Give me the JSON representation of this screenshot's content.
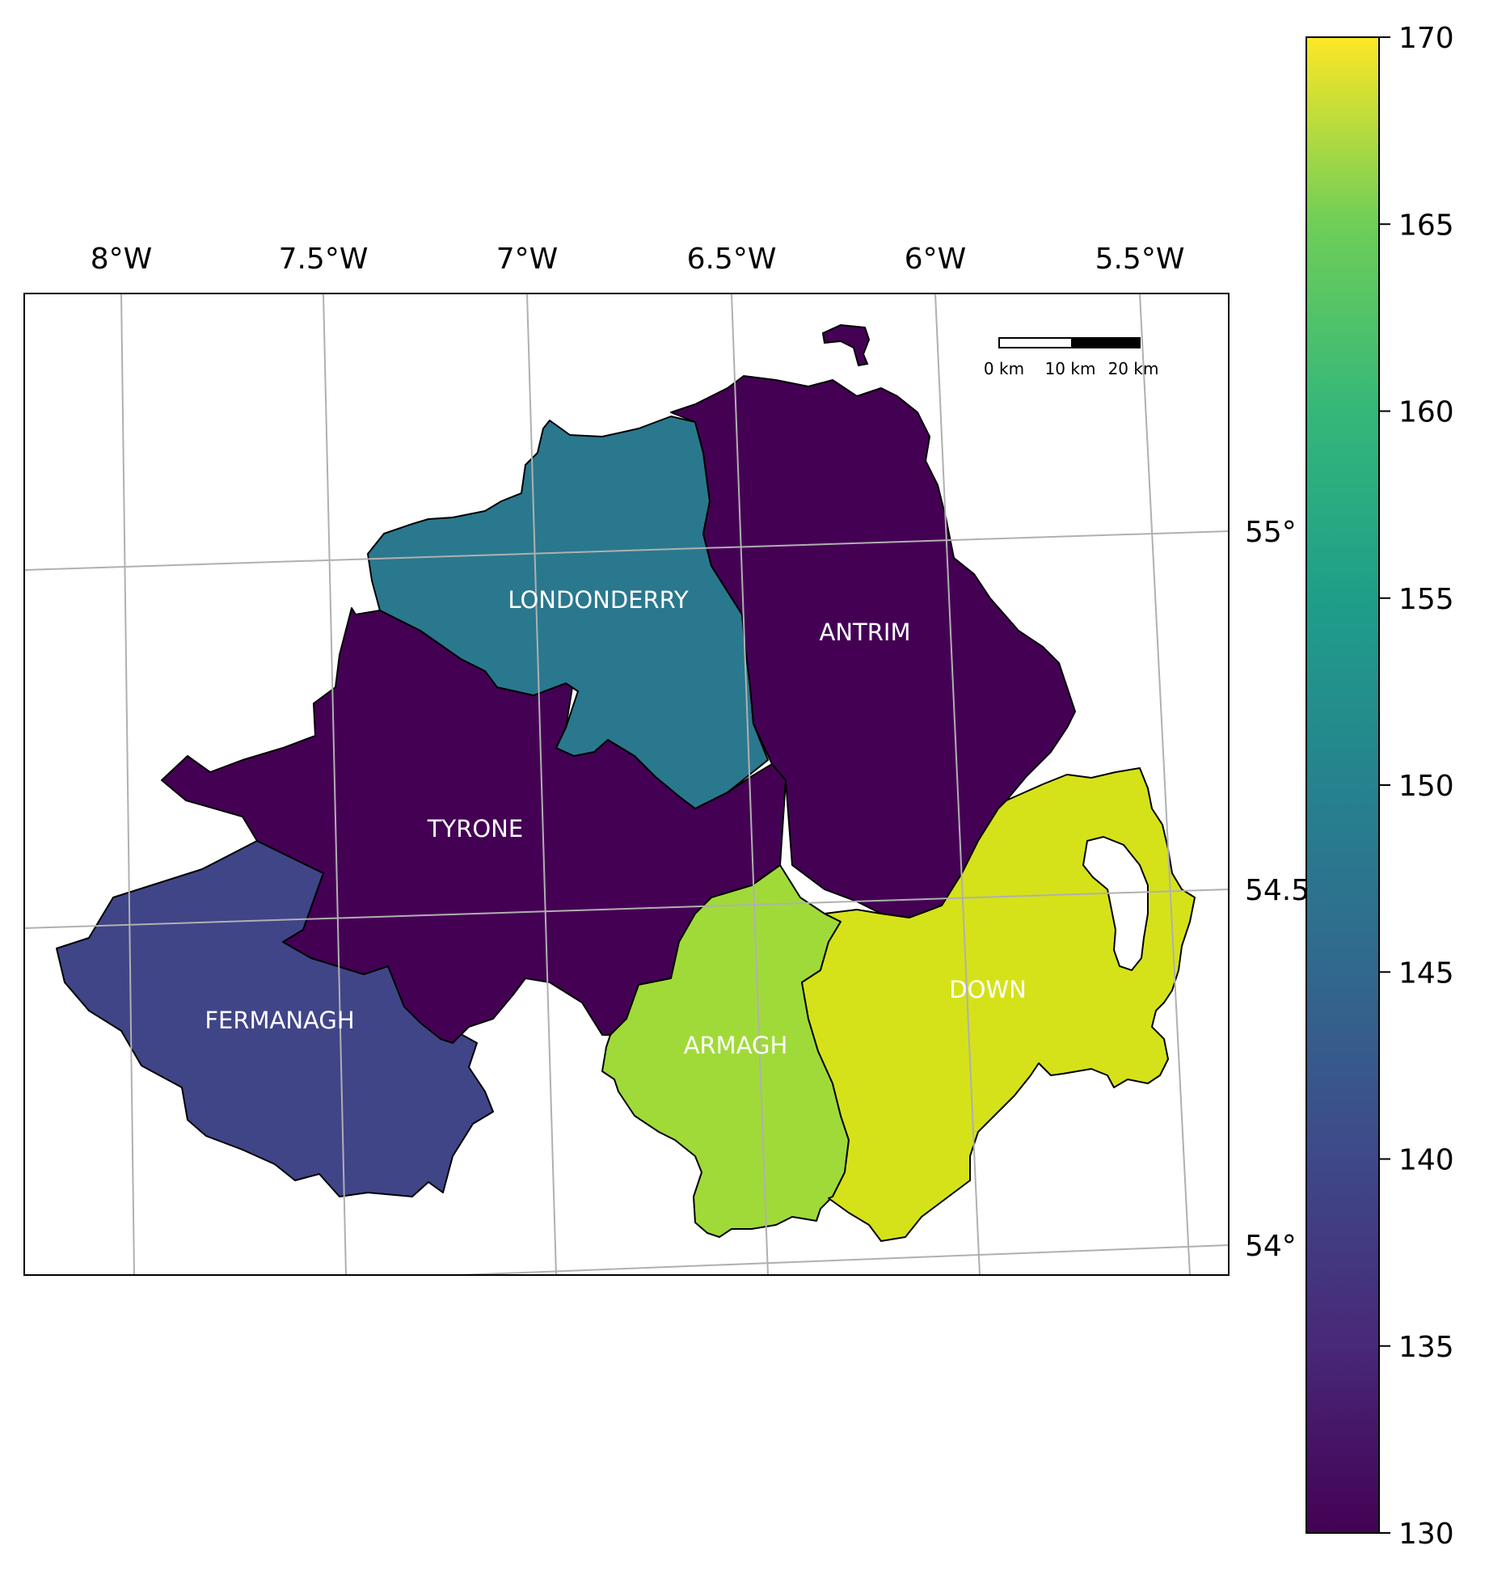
{
  "map": {
    "lon_ticks": [
      "8°W",
      "7.5°W",
      "7°W",
      "6.5°W",
      "6°W",
      "5.5°W"
    ],
    "lat_ticks": [
      "55°",
      "54.5°",
      "54°"
    ],
    "scale_bar": {
      "labels": [
        "0 km",
        "10 km",
        "20 km"
      ]
    },
    "regions": [
      {
        "id": "londonderry",
        "label": "LONDONDERRY",
        "value": 146.5,
        "color": "#2a788e"
      },
      {
        "id": "antrim",
        "label": "ANTRIM",
        "value": 130.0,
        "color": "#440154"
      },
      {
        "id": "tyrone",
        "label": "TYRONE",
        "value": 130.0,
        "color": "#440154"
      },
      {
        "id": "fermanagh",
        "label": "FERMANAGH",
        "value": 138.0,
        "color": "#404588"
      },
      {
        "id": "armagh",
        "label": "ARMAGH",
        "value": 165.5,
        "color": "#a0da39"
      },
      {
        "id": "down",
        "label": "DOWN",
        "value": 168.0,
        "color": "#d5e21a"
      }
    ]
  },
  "colorbar": {
    "colormap": "viridis",
    "range": [
      130,
      170
    ],
    "ticks": [
      "130",
      "135",
      "140",
      "145",
      "150",
      "155",
      "160",
      "165",
      "170"
    ]
  }
}
